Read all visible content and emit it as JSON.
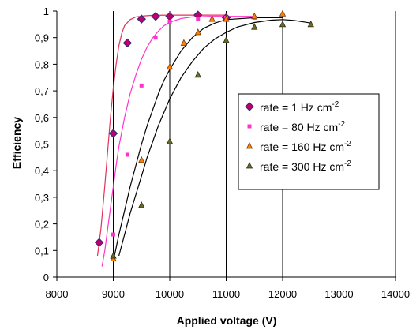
{
  "chart_data": {
    "type": "scatter",
    "xlabel": "Applied voltage (V)",
    "ylabel": "Efficiency",
    "xlim": [
      8000,
      14000
    ],
    "ylim": [
      0,
      1
    ],
    "x_ticks": [
      8000,
      9000,
      10000,
      11000,
      12000,
      13000,
      14000
    ],
    "y_ticks": [
      0,
      0.1,
      0.2,
      0.3,
      0.4,
      0.5,
      0.6,
      0.7,
      0.8,
      0.9,
      1
    ],
    "x_tick_labels": [
      "8000",
      "9000",
      "10000",
      "11000",
      "12000",
      "13000",
      "14000"
    ],
    "y_tick_labels": [
      "0",
      "0,1",
      "0,2",
      "0,3",
      "0,4",
      "0,5",
      "0,6",
      "0,7",
      "0,8",
      "0,9",
      "1"
    ],
    "grid": "vertical",
    "legend_position": "center-right",
    "series": [
      {
        "name": "rate = 1 Hz cm",
        "name_sup": "-2",
        "marker": "diamond",
        "color": "#c0006a",
        "marker_stroke": "#2a2a7a",
        "line_color": "#e0335a",
        "x": [
          8750,
          9000,
          9250,
          9500,
          9750,
          10000,
          10500,
          11000
        ],
        "y": [
          0.13,
          0.54,
          0.88,
          0.97,
          0.98,
          0.98,
          0.985,
          0.975
        ],
        "fit_x": [
          8720,
          8780,
          8840,
          8900,
          8950,
          9000,
          9050,
          9100,
          9150,
          9200,
          9300,
          9400,
          9550,
          9700,
          10000,
          10500,
          11000
        ],
        "fit_y": [
          0.08,
          0.18,
          0.32,
          0.47,
          0.6,
          0.71,
          0.8,
          0.87,
          0.915,
          0.945,
          0.968,
          0.978,
          0.982,
          0.984,
          0.985,
          0.985,
          0.985
        ]
      },
      {
        "name": "rate = 80 Hz cm",
        "name_sup": "-2",
        "marker": "square",
        "color": "#ff33cc",
        "line_color": "#ff33cc",
        "x": [
          9000,
          9250,
          9500,
          9750,
          10000,
          10500,
          11000,
          11500
        ],
        "y": [
          0.16,
          0.46,
          0.72,
          0.9,
          0.96,
          0.97,
          0.975,
          0.975
        ],
        "fit_x": [
          8800,
          8850,
          8900,
          8950,
          9000,
          9050,
          9100,
          9200,
          9300,
          9400,
          9500,
          9600,
          9700,
          9800,
          9900,
          10000,
          10200,
          10400,
          10700,
          11000,
          11500
        ],
        "fit_y": [
          0.04,
          0.1,
          0.18,
          0.26,
          0.34,
          0.42,
          0.49,
          0.6,
          0.69,
          0.76,
          0.82,
          0.865,
          0.9,
          0.925,
          0.945,
          0.958,
          0.972,
          0.978,
          0.98,
          0.98,
          0.98
        ]
      },
      {
        "name": "rate = 160 Hz cm",
        "name_sup": "-2",
        "marker": "triangle",
        "color": "#ff8000",
        "marker_stroke": "#7a3a00",
        "line_color": "#000000",
        "x": [
          9000,
          9500,
          10000,
          10250,
          10500,
          10750,
          11000,
          11500,
          12000
        ],
        "y": [
          0.07,
          0.44,
          0.79,
          0.88,
          0.92,
          0.97,
          0.97,
          0.98,
          0.99
        ],
        "fit_x": [
          9000,
          9050,
          9100,
          9200,
          9300,
          9400,
          9500,
          9600,
          9700,
          9800,
          9900,
          10000,
          10200,
          10400,
          10600,
          10800,
          11000,
          11500,
          12000
        ],
        "fit_y": [
          0.06,
          0.11,
          0.16,
          0.25,
          0.34,
          0.42,
          0.5,
          0.57,
          0.63,
          0.69,
          0.74,
          0.78,
          0.85,
          0.9,
          0.935,
          0.955,
          0.968,
          0.975,
          0.975
        ]
      },
      {
        "name": "rate = 300 Hz cm",
        "name_sup": "-2",
        "marker": "triangle",
        "color": "#6b6b2a",
        "marker_stroke": "#2b2b10",
        "line_color": "#000000",
        "x": [
          9000,
          9500,
          10000,
          10500,
          11000,
          11500,
          12000,
          12500
        ],
        "y": [
          0.08,
          0.27,
          0.51,
          0.76,
          0.89,
          0.94,
          0.95,
          0.95
        ],
        "fit_x": [
          9100,
          9200,
          9300,
          9400,
          9500,
          9600,
          9800,
          10000,
          10200,
          10400,
          10600,
          10800,
          11000,
          11200,
          11500,
          11800,
          12000,
          12200,
          12500
        ],
        "fit_y": [
          0.08,
          0.16,
          0.24,
          0.31,
          0.38,
          0.45,
          0.57,
          0.67,
          0.75,
          0.81,
          0.86,
          0.895,
          0.92,
          0.94,
          0.957,
          0.966,
          0.968,
          0.965,
          0.955
        ]
      }
    ]
  }
}
